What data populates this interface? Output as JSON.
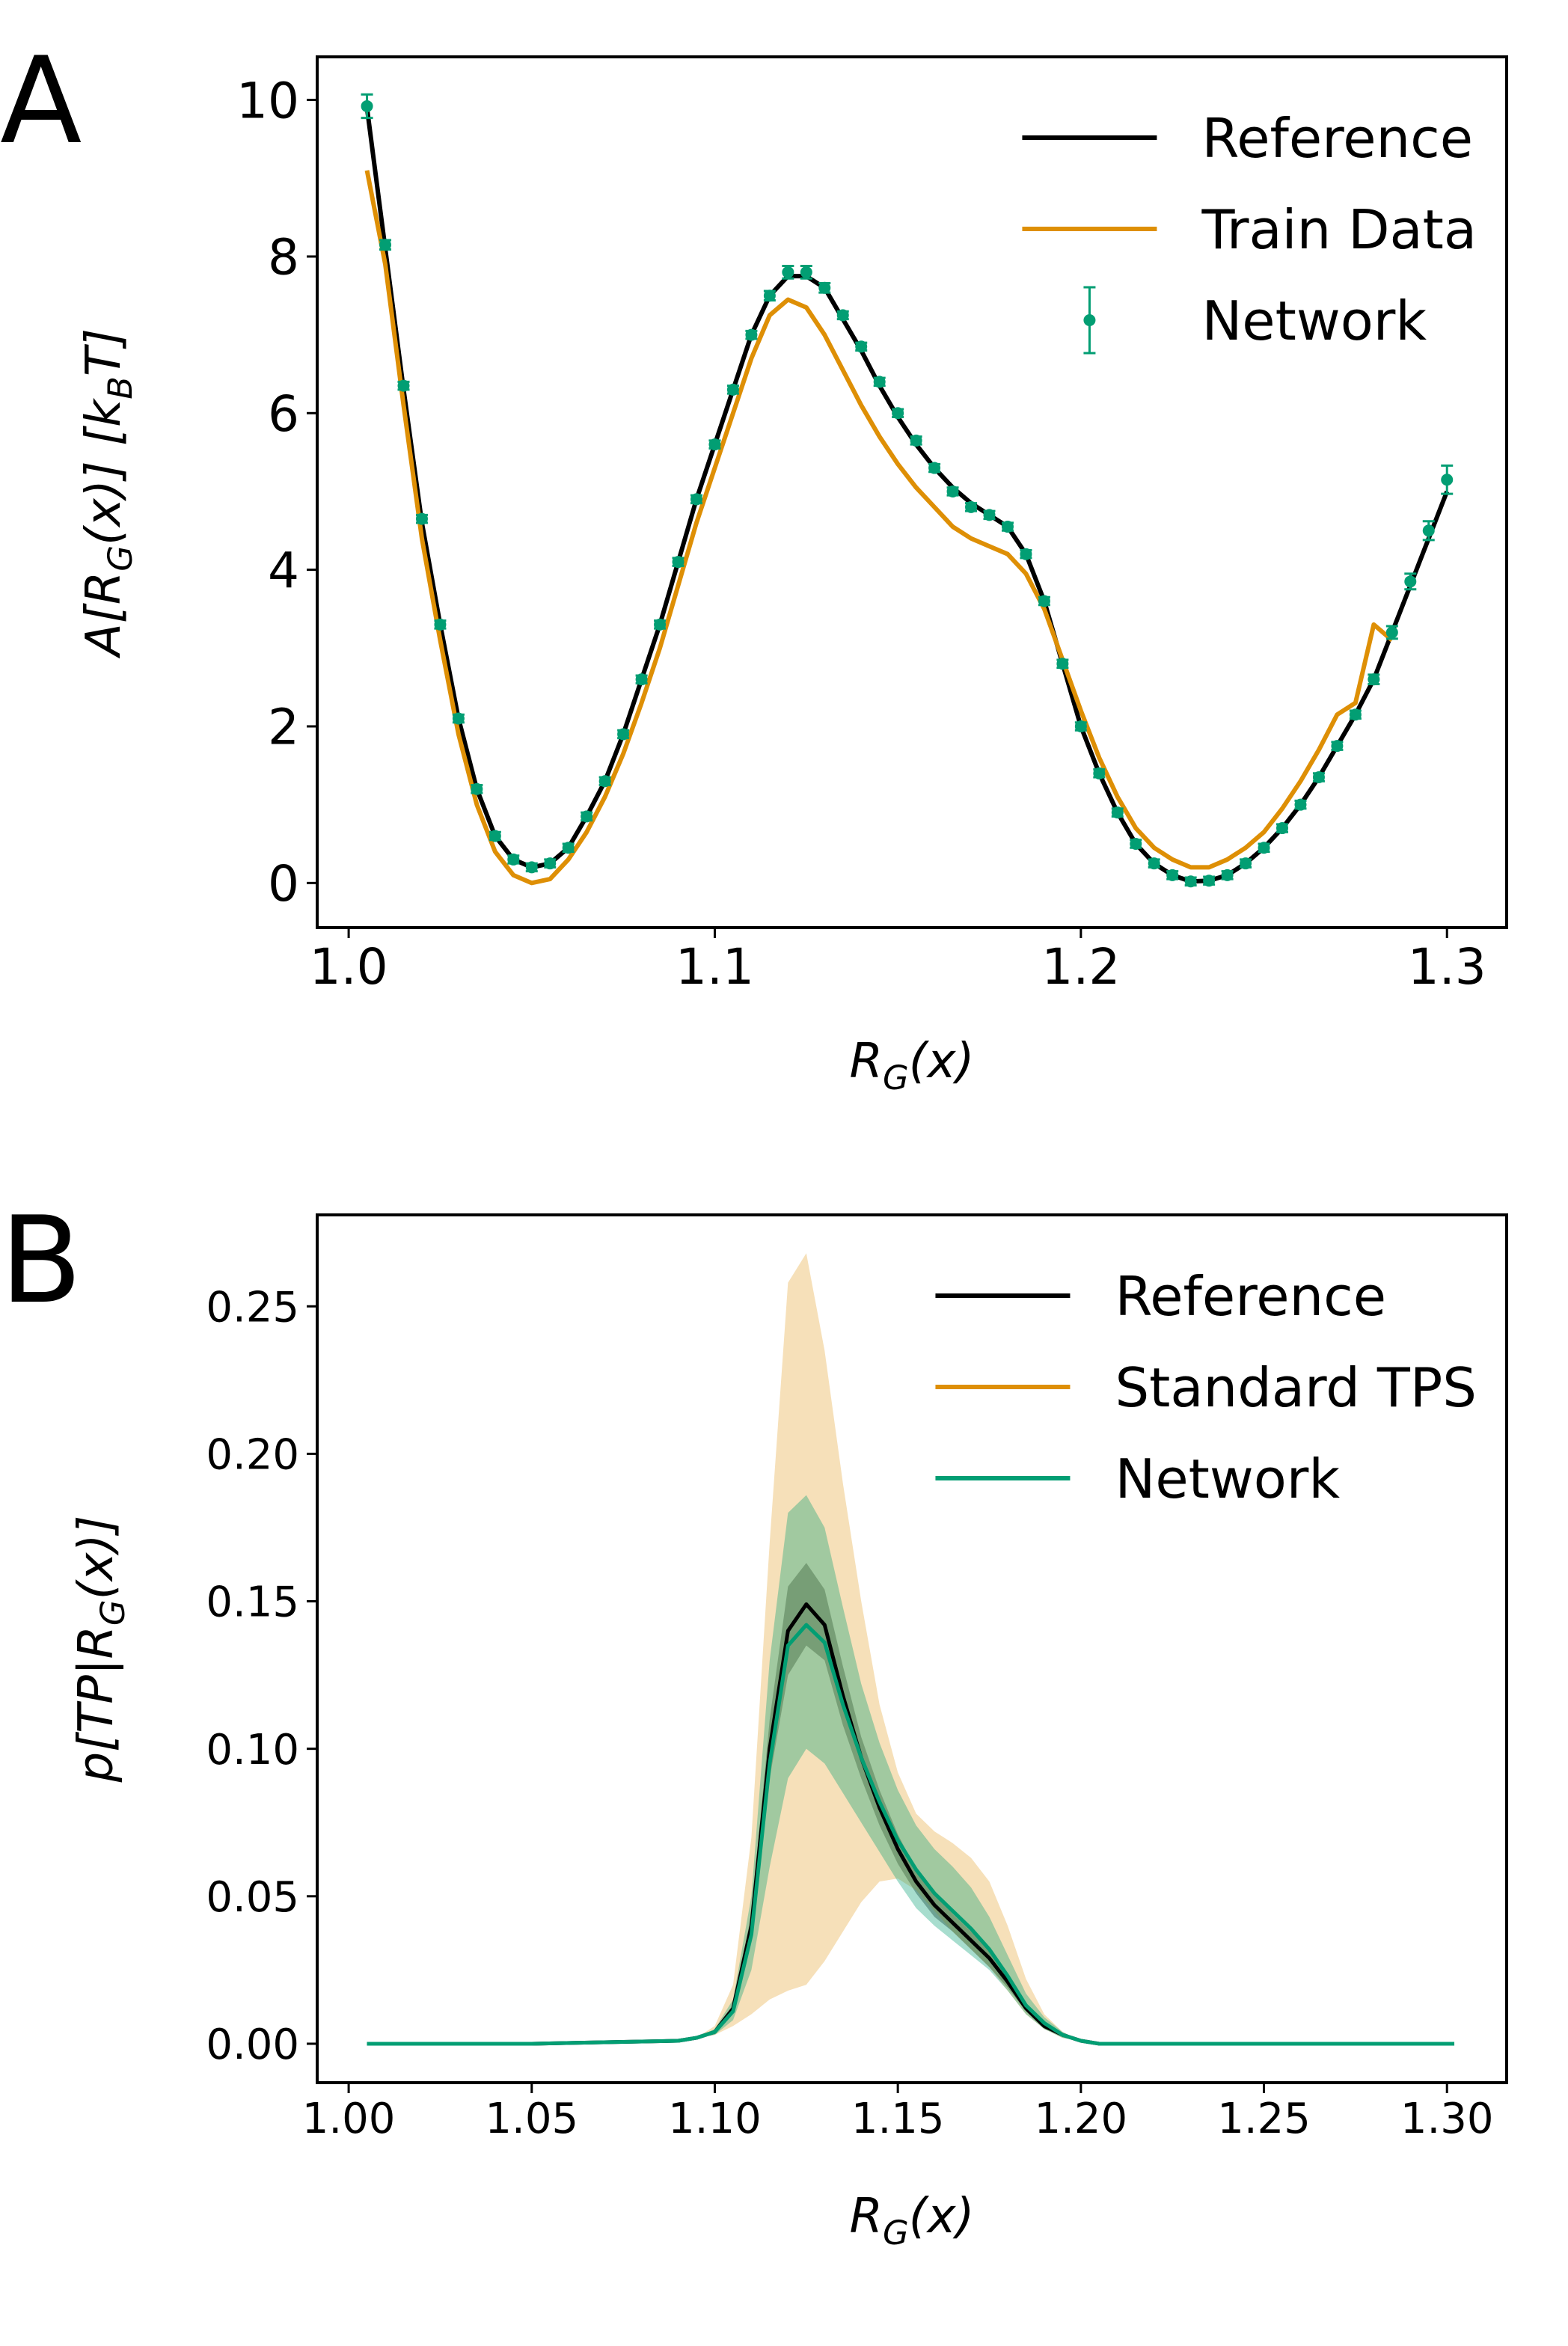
{
  "chart_data": [
    {
      "type": "line",
      "panel_label": "A",
      "xlabel": [
        "R",
        "G",
        "(x)"
      ],
      "ylabel": [
        "A[R",
        "G",
        "(x)] [k",
        "B",
        "T]"
      ],
      "xlim": [
        0.9914,
        1.3163
      ],
      "xticks": [
        {
          "value": 1.0,
          "label": "1.0"
        },
        1.1,
        1.2,
        1.3
      ],
      "ylim": [
        -0.57,
        10.55
      ],
      "yticks": [
        0,
        2,
        4,
        6,
        8,
        10
      ],
      "legend": "upper right",
      "x": [
        1.005,
        1.01,
        1.015,
        1.02,
        1.025,
        1.03,
        1.035,
        1.04,
        1.045,
        1.05,
        1.055,
        1.06,
        1.065,
        1.07,
        1.075,
        1.08,
        1.085,
        1.09,
        1.095,
        1.1,
        1.105,
        1.11,
        1.115,
        1.12,
        1.125,
        1.13,
        1.135,
        1.14,
        1.145,
        1.15,
        1.155,
        1.16,
        1.165,
        1.17,
        1.175,
        1.18,
        1.185,
        1.19,
        1.195,
        1.2,
        1.205,
        1.21,
        1.215,
        1.22,
        1.225,
        1.23,
        1.235,
        1.24,
        1.245,
        1.25,
        1.255,
        1.26,
        1.265,
        1.27,
        1.275,
        1.28,
        1.285,
        1.29,
        1.295,
        1.3
      ],
      "series": [
        {
          "name": "Reference",
          "color": "#000000",
          "values": [
            9.9,
            8.1,
            6.3,
            4.6,
            3.3,
            2.1,
            1.2,
            0.6,
            0.3,
            0.2,
            0.25,
            0.45,
            0.85,
            1.3,
            1.9,
            2.6,
            3.3,
            4.1,
            4.9,
            5.6,
            6.3,
            7.0,
            7.5,
            7.75,
            7.75,
            7.6,
            7.2,
            6.8,
            6.35,
            5.95,
            5.6,
            5.3,
            5.05,
            4.85,
            4.7,
            4.55,
            4.2,
            3.6,
            2.8,
            2.0,
            1.4,
            0.9,
            0.5,
            0.25,
            0.1,
            0.02,
            0.03,
            0.1,
            0.25,
            0.45,
            0.7,
            1.0,
            1.35,
            1.75,
            2.15,
            2.6,
            3.2,
            3.8,
            4.4,
            5.0
          ]
        },
        {
          "name": "Train Data",
          "color": "#de8f05",
          "values": [
            9.1,
            7.9,
            6.1,
            4.4,
            3.1,
            1.9,
            1.0,
            0.4,
            0.1,
            0.0,
            0.05,
            0.3,
            0.65,
            1.1,
            1.65,
            2.3,
            3.0,
            3.8,
            4.6,
            5.3,
            6.0,
            6.7,
            7.25,
            7.45,
            7.35,
            7.0,
            6.55,
            6.1,
            5.7,
            5.35,
            5.05,
            4.8,
            4.55,
            4.4,
            4.3,
            4.2,
            3.95,
            3.5,
            2.85,
            2.2,
            1.6,
            1.1,
            0.7,
            0.45,
            0.3,
            0.2,
            0.2,
            0.3,
            0.45,
            0.65,
            0.95,
            1.3,
            1.7,
            2.15,
            2.3,
            3.3,
            3.1,
            null,
            null,
            null
          ]
        },
        {
          "name": "Network",
          "color": "#029e73",
          "marker": "o",
          "values": [
            9.92,
            8.15,
            6.35,
            4.65,
            3.3,
            2.1,
            1.2,
            0.6,
            0.3,
            0.2,
            0.25,
            0.45,
            0.85,
            1.3,
            1.9,
            2.6,
            3.3,
            4.1,
            4.9,
            5.6,
            6.3,
            7.0,
            7.5,
            7.8,
            7.8,
            7.6,
            7.25,
            6.85,
            6.4,
            6.0,
            5.65,
            5.3,
            5.0,
            4.8,
            4.7,
            4.55,
            4.2,
            3.6,
            2.8,
            2.0,
            1.4,
            0.9,
            0.5,
            0.25,
            0.1,
            0.02,
            0.03,
            0.1,
            0.25,
            0.45,
            0.7,
            1.0,
            1.35,
            1.75,
            2.15,
            2.6,
            3.2,
            3.85,
            4.5,
            5.15
          ],
          "errors": [
            0.15,
            0.06,
            0.05,
            0.05,
            0.05,
            0.05,
            0.05,
            0.05,
            0.05,
            0.05,
            0.05,
            0.05,
            0.05,
            0.05,
            0.05,
            0.05,
            0.05,
            0.05,
            0.05,
            0.05,
            0.05,
            0.05,
            0.06,
            0.08,
            0.08,
            0.06,
            0.05,
            0.05,
            0.05,
            0.05,
            0.05,
            0.05,
            0.05,
            0.05,
            0.05,
            0.05,
            0.05,
            0.05,
            0.05,
            0.05,
            0.05,
            0.05,
            0.05,
            0.05,
            0.05,
            0.05,
            0.05,
            0.05,
            0.05,
            0.05,
            0.05,
            0.05,
            0.05,
            0.05,
            0.05,
            0.06,
            0.08,
            0.1,
            0.12,
            0.18
          ]
        }
      ]
    },
    {
      "type": "line",
      "panel_label": "B",
      "xlabel": [
        "R",
        "G",
        "(x)"
      ],
      "ylabel": [
        "p[TP|R",
        "G",
        "(x)]"
      ],
      "xlim": [
        0.9914,
        1.3163
      ],
      "xticks": [
        {
          "value": 1.0,
          "label": "1.00"
        },
        1.05,
        {
          "value": 1.1,
          "label": "1.10"
        },
        1.15,
        {
          "value": 1.2,
          "label": "1.20"
        },
        1.25,
        {
          "value": 1.3,
          "label": "1.30"
        }
      ],
      "ylim": [
        -0.0132,
        0.281
      ],
      "yticks": [
        {
          "value": 0,
          "label": "0.00"
        },
        0.05,
        {
          "value": 0.1,
          "label": "0.10"
        },
        0.15,
        {
          "value": 0.2,
          "label": "0.20"
        },
        0.25
      ],
      "legend": "upper right",
      "x": [
        1.005,
        1.05,
        1.09,
        1.095,
        1.1,
        1.105,
        1.11,
        1.115,
        1.12,
        1.125,
        1.13,
        1.135,
        1.14,
        1.145,
        1.15,
        1.155,
        1.16,
        1.165,
        1.17,
        1.175,
        1.18,
        1.185,
        1.19,
        1.195,
        1.2,
        1.205,
        1.25,
        1.302
      ],
      "series": [
        {
          "name": "Reference",
          "color": "#000000",
          "values": [
            0,
            0,
            0.001,
            0.002,
            0.004,
            0.012,
            0.04,
            0.1,
            0.14,
            0.149,
            0.142,
            0.118,
            0.097,
            0.08,
            0.066,
            0.055,
            0.047,
            0.041,
            0.035,
            0.029,
            0.021,
            0.012,
            0.006,
            0.003,
            0.001,
            0,
            0,
            0
          ],
          "lower": [
            0,
            0,
            0.001,
            0.002,
            0.004,
            0.011,
            0.036,
            0.09,
            0.125,
            0.135,
            0.13,
            0.108,
            0.09,
            0.074,
            0.061,
            0.051,
            0.043,
            0.038,
            0.032,
            0.026,
            0.019,
            0.011,
            0.005,
            0.003,
            0.001,
            0,
            0,
            0
          ],
          "upper": [
            0,
            0,
            0.001,
            0.002,
            0.004,
            0.013,
            0.044,
            0.11,
            0.155,
            0.163,
            0.154,
            0.128,
            0.104,
            0.086,
            0.071,
            0.059,
            0.051,
            0.044,
            0.038,
            0.032,
            0.023,
            0.013,
            0.007,
            0.003,
            0.001,
            0,
            0,
            0
          ]
        },
        {
          "name": "Standard TPS",
          "color": "#de8f05",
          "lower": [
            0,
            0,
            0.001,
            0.002,
            0.003,
            0.006,
            0.01,
            0.015,
            0.018,
            0.02,
            0.028,
            0.038,
            0.048,
            0.055,
            0.056,
            0.052,
            0.045,
            0.038,
            0.032,
            0.026,
            0.018,
            0.01,
            0.005,
            0.002,
            0.001,
            0,
            0,
            0
          ],
          "upper": [
            0,
            0,
            0.001,
            0.002,
            0.006,
            0.02,
            0.07,
            0.17,
            0.258,
            0.268,
            0.235,
            0.19,
            0.15,
            0.115,
            0.092,
            0.078,
            0.072,
            0.068,
            0.063,
            0.055,
            0.04,
            0.022,
            0.01,
            0.004,
            0.001,
            0,
            0,
            0
          ]
        },
        {
          "name": "Network",
          "color": "#029e73",
          "values": [
            0,
            0,
            0.001,
            0.002,
            0.004,
            0.011,
            0.037,
            0.095,
            0.135,
            0.142,
            0.136,
            0.115,
            0.097,
            0.082,
            0.069,
            0.059,
            0.051,
            0.045,
            0.039,
            0.032,
            0.023,
            0.013,
            0.007,
            0.003,
            0.001,
            0,
            0,
            0
          ],
          "lower": [
            0,
            0,
            0.001,
            0.002,
            0.003,
            0.008,
            0.025,
            0.06,
            0.09,
            0.1,
            0.095,
            0.085,
            0.075,
            0.065,
            0.055,
            0.046,
            0.04,
            0.035,
            0.03,
            0.025,
            0.018,
            0.01,
            0.005,
            0.002,
            0.001,
            0,
            0,
            0
          ],
          "upper": [
            0,
            0,
            0.001,
            0.002,
            0.005,
            0.015,
            0.05,
            0.13,
            0.18,
            0.186,
            0.175,
            0.148,
            0.122,
            0.102,
            0.086,
            0.074,
            0.066,
            0.06,
            0.053,
            0.043,
            0.03,
            0.017,
            0.009,
            0.004,
            0.001,
            0,
            0,
            0
          ]
        }
      ]
    }
  ]
}
